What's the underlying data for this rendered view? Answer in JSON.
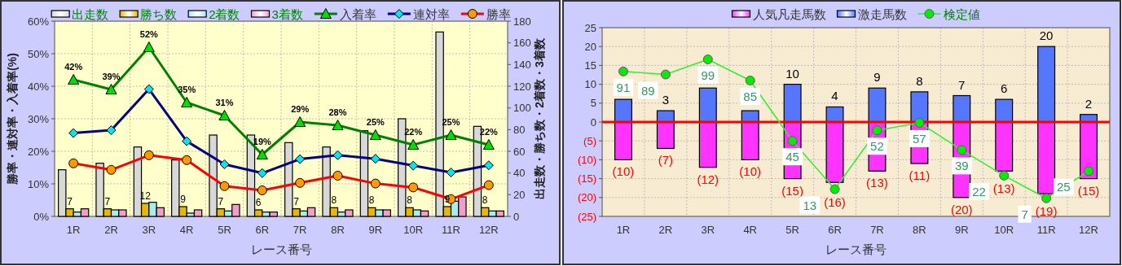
{
  "chart_data": [
    {
      "type": "bar",
      "categories": [
        "1R",
        "2R",
        "3R",
        "4R",
        "5R",
        "6R",
        "7R",
        "8R",
        "9R",
        "10R",
        "11R",
        "12R"
      ],
      "xlabel": "レース番号",
      "ylabel": "勝率・連対率・入着率(%)",
      "y2label": "出走数・勝ち数・2着数・3着数",
      "ylim": [
        0,
        60
      ],
      "yticks": [
        {
          "value": 0,
          "label": "0%"
        },
        {
          "value": 10,
          "label": "10%"
        },
        {
          "value": 20,
          "label": "20%"
        },
        {
          "value": 30,
          "label": "30%"
        },
        {
          "value": 40,
          "label": "40%"
        },
        {
          "value": 50,
          "label": "50%"
        },
        {
          "value": 60,
          "label": "60%"
        }
      ],
      "y2lim": [
        0,
        180
      ],
      "y2ticks": [
        0,
        20,
        40,
        60,
        80,
        100,
        120,
        140,
        160,
        180
      ],
      "grid": true,
      "legend": "top",
      "series": [
        {
          "name": "出走数",
          "axis": "y2",
          "color": "#d8d8d8",
          "values": [
            43,
            49,
            64,
            52,
            75,
            75,
            68,
            64,
            79,
            90,
            170,
            83
          ]
        },
        {
          "name": "勝ち数",
          "axis": "y2",
          "color": "#e6b800",
          "values": [
            7,
            7,
            12,
            9,
            7,
            6,
            7,
            8,
            8,
            8,
            9,
            8
          ],
          "value_labels": [
            "7",
            "7",
            "12",
            "9",
            "7",
            "6",
            "7",
            "8",
            "8",
            "8",
            "9",
            "8"
          ]
        },
        {
          "name": "2着数",
          "axis": "y2",
          "color": "#a8ecec",
          "values": [
            4,
            6,
            13,
            3,
            5,
            4,
            5,
            4,
            6,
            6,
            14,
            5
          ]
        },
        {
          "name": "3着数",
          "axis": "y2",
          "color": "#f0a0c8",
          "values": [
            7,
            6,
            8,
            6,
            11,
            4,
            8,
            6,
            6,
            5,
            18,
            5
          ]
        },
        {
          "name": "入着率",
          "type": "line",
          "axis": "y",
          "color": "#008000",
          "colors": [
            "#00dd00",
            "#00dd00",
            "#00dd00",
            "#00dd00",
            "#00dd00",
            "#00dd00",
            "#00dd00",
            "#00dd00",
            "#00dd00",
            "#00dd00",
            "#00dd00",
            "#00dd00"
          ],
          "marker": "triangle",
          "values": [
            42,
            39,
            52,
            35,
            31,
            19,
            29,
            28,
            25,
            22,
            25,
            22
          ],
          "value_labels": [
            "42%",
            "39%",
            "52%",
            "35%",
            "31%",
            "19%",
            "29%",
            "28%",
            "25%",
            "22%",
            "25%",
            "22%"
          ]
        },
        {
          "name": "連対率",
          "type": "line",
          "axis": "y",
          "color": "#000080",
          "colors": [
            "#00e5ee",
            "#00e5ee",
            "#00e5ee",
            "#00e5ee",
            "#00e5ee",
            "#00e5ee",
            "#00e5ee",
            "#00e5ee",
            "#00e5ee",
            "#00e5ee",
            "#00e5ee",
            "#00e5ee"
          ],
          "marker": "diamond",
          "values": [
            25.6,
            26.5,
            39.1,
            23.1,
            16.0,
            13.3,
            17.6,
            18.8,
            17.7,
            15.6,
            13.5,
            15.7
          ]
        },
        {
          "name": "勝率",
          "type": "line",
          "axis": "y",
          "color": "#ff0000",
          "colors": [
            "#ff9900",
            "#ff9900",
            "#ff9900",
            "#ff9900",
            "#ff9900",
            "#ff9900",
            "#ff9900",
            "#ff9900",
            "#ff9900",
            "#ff9900",
            "#ff9900",
            "#ff9900"
          ],
          "marker": "circle",
          "values": [
            16.3,
            14.3,
            18.8,
            17.3,
            9.3,
            8.0,
            10.3,
            12.5,
            10.1,
            8.9,
            5.3,
            9.6
          ]
        }
      ]
    },
    {
      "type": "bar",
      "stacked": true,
      "categories": [
        "1R",
        "2R",
        "3R",
        "4R",
        "5R",
        "6R",
        "7R",
        "8R",
        "9R",
        "10R",
        "11R",
        "12R"
      ],
      "xlabel": "レース番号",
      "ylim": [
        -25,
        25
      ],
      "yticks": [
        25,
        20,
        15,
        10,
        5,
        0,
        {
          "value": -5,
          "label": "(5)"
        },
        {
          "value": -10,
          "label": "(10)"
        },
        {
          "value": -15,
          "label": "(15)"
        },
        {
          "value": -20,
          "label": "(20)"
        },
        {
          "value": -25,
          "label": "(25)"
        }
      ],
      "y2lim": [
        -5,
        120
      ],
      "tick_labels": "xy",
      "grid": true,
      "legend": "top",
      "ref_lines": [
        {
          "axis": "y",
          "value": 0,
          "color": "#ff0000"
        }
      ],
      "series": [
        {
          "name": "人気凡走馬数",
          "axis": "y",
          "color": "#ff33ff",
          "values": [
            -10,
            -7,
            -12,
            -10,
            -15,
            -16,
            -13,
            -11,
            -20,
            -13,
            -19,
            -15
          ],
          "value_labels": [
            "(10)",
            "(7)",
            "(12)",
            "(10)",
            "(15)",
            "(16)",
            "(13)",
            "(11)",
            "(20)",
            "(13)",
            "(19)",
            "(15)"
          ]
        },
        {
          "name": "激走馬数",
          "axis": "y",
          "color": "#5577ff",
          "values": [
            6,
            3,
            9,
            3,
            10,
            4,
            9,
            8,
            7,
            6,
            20,
            2
          ],
          "value_labels": [
            null,
            "3",
            null,
            null,
            "10",
            "4",
            "9",
            "8",
            "7",
            "6",
            "20",
            "2"
          ]
        },
        {
          "name": "検定値",
          "type": "line",
          "axis": "y2",
          "color": "#33ee33",
          "colors": [
            "#00ee00",
            "#00ee00",
            "#00ee00",
            "#00ee00",
            "#00ee00",
            "#00ee00",
            "#00ee00",
            "#00ee00",
            "#00ee00",
            "#00ee00",
            "#00ee00",
            "#00ee00"
          ],
          "marker": "circle",
          "values": [
            91,
            89,
            99,
            85,
            45,
            13,
            52,
            57,
            39,
            22,
            7,
            25
          ],
          "value_labels": [
            "91",
            "89",
            "99",
            "85",
            "45",
            "13",
            "52",
            "57",
            "39",
            "22",
            "7",
            "25"
          ]
        }
      ]
    }
  ]
}
